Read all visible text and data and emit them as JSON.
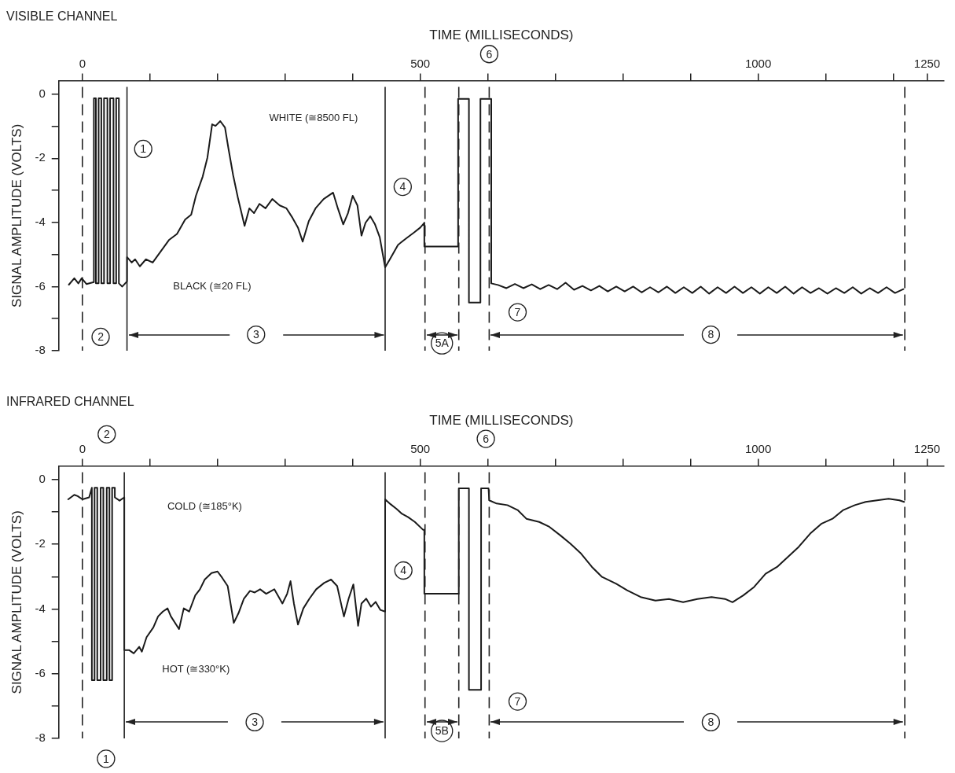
{
  "chart_data": [
    {
      "type": "line",
      "title": "VISIBLE CHANNEL",
      "xlabel": "TIME (MILLISECONDS)",
      "ylabel": "SIGNAL AMPLITUDE (VOLTS)",
      "xlim": [
        -35,
        1275
      ],
      "ylim": [
        -8,
        0.42
      ],
      "xticks": [
        0,
        {
          "value": 100,
          "label": null
        },
        {
          "value": 200,
          "label": null
        },
        {
          "value": 300,
          "label": null
        },
        {
          "value": 400,
          "label": null
        },
        500,
        {
          "value": 600,
          "label": null
        },
        {
          "value": 700,
          "label": null
        },
        {
          "value": 800,
          "label": null
        },
        {
          "value": 900,
          "label": null
        },
        1000,
        {
          "value": 1100,
          "label": null
        },
        {
          "value": 1200,
          "label": null
        },
        1250
      ],
      "yticks": [
        0,
        {
          "value": -1,
          "label": null
        },
        -2,
        {
          "value": -3,
          "label": null
        },
        -4,
        {
          "value": -5,
          "label": null
        },
        -6,
        {
          "value": -7,
          "label": null
        },
        -8
      ],
      "marker": "none",
      "line_style": "solid",
      "series": [
        {
          "color": "#1a1a1a",
          "x": [
            -20,
            -12,
            -6,
            -1,
            6,
            17,
            17,
            20,
            20,
            24,
            24,
            28,
            28,
            32,
            32,
            37,
            37,
            41,
            41,
            46,
            46,
            50,
            50,
            54,
            54,
            59,
            66,
            66,
            73,
            78,
            85,
            94,
            104,
            116,
            128,
            140,
            152,
            161,
            168,
            178,
            185,
            192,
            197,
            204,
            211,
            216,
            223,
            230,
            240,
            247,
            254,
            262,
            271,
            281,
            292,
            302,
            311,
            319,
            326,
            335,
            345,
            357,
            371,
            378,
            386,
            393,
            400,
            407,
            413,
            419,
            426,
            433,
            440,
            448,
            455,
            467,
            479,
            491,
            500,
            506,
            506,
            556,
            556,
            572,
            572,
            589,
            589,
            605,
            605,
            615,
            627.5,
            640,
            652.5,
            665,
            677.5,
            690,
            702.5,
            715,
            727.5,
            740,
            752.5,
            765,
            777.5,
            790,
            802.5,
            815,
            827.5,
            840,
            852.5,
            865,
            877.5,
            890,
            902.5,
            915,
            927.5,
            940,
            952.5,
            965,
            977.5,
            990,
            1002.5,
            1015,
            1027.5,
            1040,
            1052.5,
            1065,
            1077.5,
            1090,
            1102.5,
            1115,
            1127.5,
            1140,
            1152.5,
            1165,
            1177.5,
            1190,
            1202.5,
            1215
          ],
          "values": [
            -5.94,
            -5.74,
            -5.9,
            -5.74,
            -5.92,
            -5.86,
            -0.13,
            -0.13,
            -5.9,
            -5.9,
            -0.13,
            -0.13,
            -5.9,
            -5.9,
            -0.13,
            -0.13,
            -5.9,
            -5.9,
            -0.13,
            -0.13,
            -5.9,
            -5.9,
            -0.13,
            -0.13,
            -5.9,
            -6.0,
            -5.84,
            -5.08,
            -5.25,
            -5.15,
            -5.37,
            -5.15,
            -5.25,
            -4.9,
            -4.55,
            -4.36,
            -3.91,
            -3.76,
            -3.17,
            -2.57,
            -1.98,
            -0.94,
            -0.99,
            -0.84,
            -1.04,
            -1.68,
            -2.52,
            -3.22,
            -4.11,
            -3.56,
            -3.71,
            -3.42,
            -3.56,
            -3.27,
            -3.47,
            -3.56,
            -3.86,
            -4.16,
            -4.6,
            -3.96,
            -3.56,
            -3.27,
            -3.07,
            -3.56,
            -4.06,
            -3.71,
            -3.17,
            -3.47,
            -4.41,
            -4.01,
            -3.81,
            -4.06,
            -4.46,
            -5.4,
            -5.15,
            -4.7,
            -4.5,
            -4.31,
            -4.16,
            -4.01,
            -4.75,
            -4.75,
            -0.15,
            -0.15,
            -6.5,
            -6.5,
            -0.15,
            -0.15,
            -5.9,
            -5.95,
            -6.05,
            -5.92,
            -6.05,
            -5.93,
            -6.08,
            -5.95,
            -6.08,
            -5.88,
            -6.1,
            -5.98,
            -6.12,
            -5.98,
            -6.15,
            -6.0,
            -6.15,
            -6.0,
            -6.18,
            -6.02,
            -6.18,
            -6.0,
            -6.2,
            -6.02,
            -6.2,
            -6.0,
            -6.22,
            -6.02,
            -6.2,
            -6.0,
            -6.2,
            -6.02,
            -6.22,
            -6.02,
            -6.2,
            -6.0,
            -6.22,
            -6.02,
            -6.2,
            -6.05,
            -6.22,
            -6.05,
            -6.2,
            -6.02,
            -6.22,
            -6.05,
            -6.2,
            -6.02,
            -6.2,
            -6.08
          ]
        }
      ],
      "ref_lines": [
        {
          "axis": "x",
          "value": 0,
          "line_style": "dashed"
        },
        {
          "axis": "x",
          "value": 66,
          "line_style": "solid"
        },
        {
          "axis": "x",
          "value": 448,
          "line_style": "solid"
        },
        {
          "axis": "x",
          "value": 507,
          "line_style": "dashed"
        },
        {
          "axis": "x",
          "value": 557,
          "line_style": "dashed"
        },
        {
          "axis": "x",
          "value": 602,
          "line_style": "dashed"
        },
        {
          "axis": "x",
          "value": 1217,
          "line_style": "dashed"
        }
      ],
      "annotations": [
        "WHITE (≅8500 FL)",
        "BLACK (≅20 FL)",
        {
          "text": "1",
          "x": 90,
          "y": -1.71
        },
        "2",
        {
          "text": "4",
          "x": 474,
          "y": -2.89
        },
        "6",
        {
          "text": "7",
          "x": 644,
          "y": -6.8
        },
        "3",
        "5A",
        "8"
      ]
    },
    {
      "type": "line",
      "title": "INFRARED CHANNEL",
      "xlabel": "TIME (MILLISECONDS)",
      "ylabel": "SIGNAL AMPLITUDE (VOLTS)",
      "xlim": [
        -35,
        1275
      ],
      "ylim": [
        -8,
        0.42
      ],
      "xticks": [
        0,
        {
          "value": 100,
          "label": null
        },
        {
          "value": 200,
          "label": null
        },
        {
          "value": 300,
          "label": null
        },
        {
          "value": 400,
          "label": null
        },
        500,
        {
          "value": 600,
          "label": null
        },
        {
          "value": 700,
          "label": null
        },
        {
          "value": 800,
          "label": null
        },
        {
          "value": 900,
          "label": null
        },
        1000,
        {
          "value": 1100,
          "label": null
        },
        {
          "value": 1200,
          "label": null
        },
        1250
      ],
      "yticks": [
        0,
        {
          "value": -1,
          "label": null
        },
        -2,
        {
          "value": -3,
          "label": null
        },
        -4,
        {
          "value": -5,
          "label": null
        },
        -6,
        {
          "value": -7,
          "label": null
        },
        -8
      ],
      "marker": "none",
      "line_style": "solid",
      "series": [
        {
          "color": "#1a1a1a",
          "x": [
            -21,
            -12,
            -7,
            0,
            10,
            14,
            14,
            18,
            18,
            22,
            22,
            27,
            27,
            31,
            31,
            36,
            36,
            40,
            40,
            44,
            44,
            48,
            48,
            55,
            62,
            62,
            69,
            76,
            84,
            88,
            95,
            105,
            112,
            119,
            126,
            131,
            143,
            150,
            158,
            167,
            174,
            181,
            191,
            200,
            207,
            215,
            224,
            231,
            239,
            248,
            255,
            263,
            272,
            284,
            296,
            303,
            308,
            313,
            319,
            327,
            336,
            346,
            358,
            368,
            377,
            387,
            394,
            401,
            408,
            413,
            420,
            427,
            434,
            441,
            448,
            448,
            456,
            465,
            473,
            482,
            492,
            504,
            506,
            506,
            557,
            557,
            572,
            572,
            590,
            590,
            601,
            602,
            613,
            629,
            644,
            657,
            676,
            691,
            707,
            722,
            738,
            754,
            769,
            790,
            806,
            826,
            848,
            868,
            889,
            910,
            931,
            951,
            962,
            978,
            994,
            1011,
            1028,
            1044,
            1060,
            1077,
            1094,
            1110,
            1126,
            1143,
            1159,
            1176,
            1193,
            1209,
            1216
          ],
          "values": [
            -0.61,
            -0.47,
            -0.51,
            -0.61,
            -0.55,
            -0.25,
            -6.2,
            -6.2,
            -0.25,
            -0.25,
            -6.2,
            -6.2,
            -0.25,
            -0.25,
            -6.2,
            -6.2,
            -0.25,
            -0.25,
            -6.2,
            -6.2,
            -0.25,
            -0.25,
            -0.55,
            -0.65,
            -0.55,
            -5.27,
            -5.27,
            -5.37,
            -5.17,
            -5.32,
            -4.87,
            -4.57,
            -4.23,
            -4.08,
            -3.98,
            -4.23,
            -4.62,
            -3.98,
            -4.08,
            -3.58,
            -3.39,
            -3.09,
            -2.89,
            -2.84,
            -3.04,
            -3.29,
            -4.43,
            -4.13,
            -3.68,
            -3.44,
            -3.49,
            -3.39,
            -3.53,
            -3.39,
            -3.83,
            -3.53,
            -3.14,
            -3.83,
            -4.48,
            -3.98,
            -3.68,
            -3.39,
            -3.19,
            -3.09,
            -3.29,
            -4.23,
            -3.68,
            -3.24,
            -4.52,
            -3.83,
            -3.68,
            -3.93,
            -3.78,
            -4.03,
            -4.08,
            -0.61,
            -0.76,
            -0.91,
            -1.06,
            -1.16,
            -1.31,
            -1.55,
            -1.55,
            -3.53,
            -3.53,
            -0.27,
            -0.27,
            -6.5,
            -6.5,
            -0.27,
            -0.27,
            -0.64,
            -0.74,
            -0.79,
            -0.94,
            -1.21,
            -1.31,
            -1.46,
            -1.72,
            -1.98,
            -2.29,
            -2.7,
            -3.01,
            -3.22,
            -3.42,
            -3.63,
            -3.74,
            -3.69,
            -3.79,
            -3.69,
            -3.63,
            -3.69,
            -3.79,
            -3.58,
            -3.32,
            -2.91,
            -2.7,
            -2.39,
            -2.08,
            -1.67,
            -1.36,
            -1.21,
            -0.94,
            -0.79,
            -0.69,
            -0.64,
            -0.59,
            -0.64,
            -0.69
          ]
        }
      ],
      "ref_lines": [
        {
          "axis": "x",
          "value": 0,
          "line_style": "dashed"
        },
        {
          "axis": "x",
          "value": 62,
          "line_style": "solid"
        },
        {
          "axis": "x",
          "value": 448,
          "line_style": "solid"
        },
        {
          "axis": "x",
          "value": 507,
          "line_style": "dashed"
        },
        {
          "axis": "x",
          "value": 557,
          "line_style": "dashed"
        },
        {
          "axis": "x",
          "value": 602,
          "line_style": "dashed"
        },
        {
          "axis": "x",
          "value": 1217,
          "line_style": "dashed"
        }
      ],
      "annotations": [
        "COLD (≅185°K)",
        "HOT (≅330°K)",
        "1",
        "2",
        {
          "text": "4",
          "x": 475,
          "y": -2.81
        },
        "6",
        {
          "text": "7",
          "x": 644,
          "y": -6.86
        },
        "3",
        "5B",
        "8"
      ]
    }
  ]
}
